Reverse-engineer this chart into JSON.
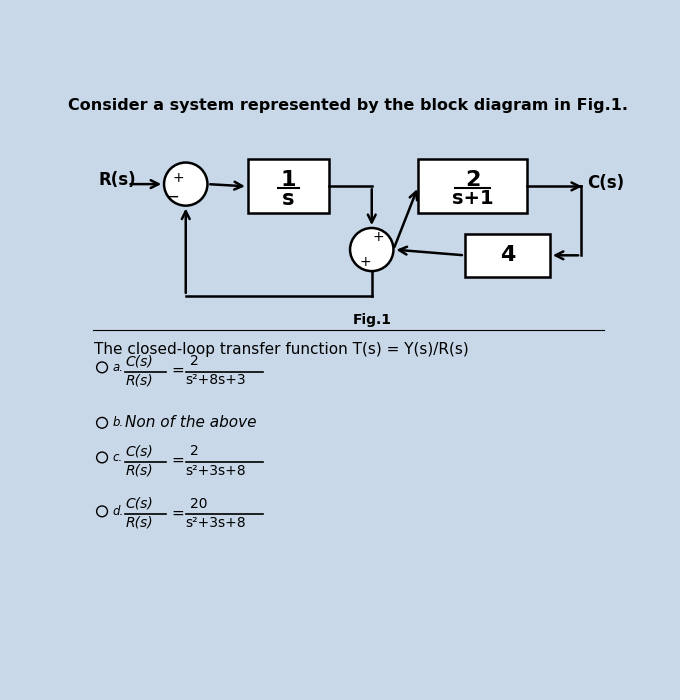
{
  "title": "Consider a system represented by the block diagram in Fig.1.",
  "background_color": "#c8d8e8",
  "fig_label": "Fig.1",
  "question_text": "The closed-loop transfer function T(s) = Y(s)/R(s)",
  "R_label": "R(s)",
  "C_label": "C(s)",
  "block1_num": "1",
  "block1_den": "s",
  "block2_num": "2",
  "block2_den": "s+1",
  "block3_val": "4",
  "opt_a_label": "a.",
  "opt_a_num": "C(s)",
  "opt_a_den": "R(s)",
  "opt_a_eq_num": "2",
  "opt_a_eq_den": "s²+8s+3",
  "opt_b_label": "b.",
  "opt_b_text": "Non of the above",
  "opt_c_label": "c.",
  "opt_c_num": "C(s)",
  "opt_c_den": "R(s)",
  "opt_c_eq_num": "2",
  "opt_c_eq_den": "s²+3s+8",
  "opt_d_label": "d.",
  "opt_d_num": "C(s)",
  "opt_d_den": "R(s)",
  "opt_d_eq_num": "20",
  "opt_d_eq_den": "s²+3s+8",
  "minus_sign": "−"
}
